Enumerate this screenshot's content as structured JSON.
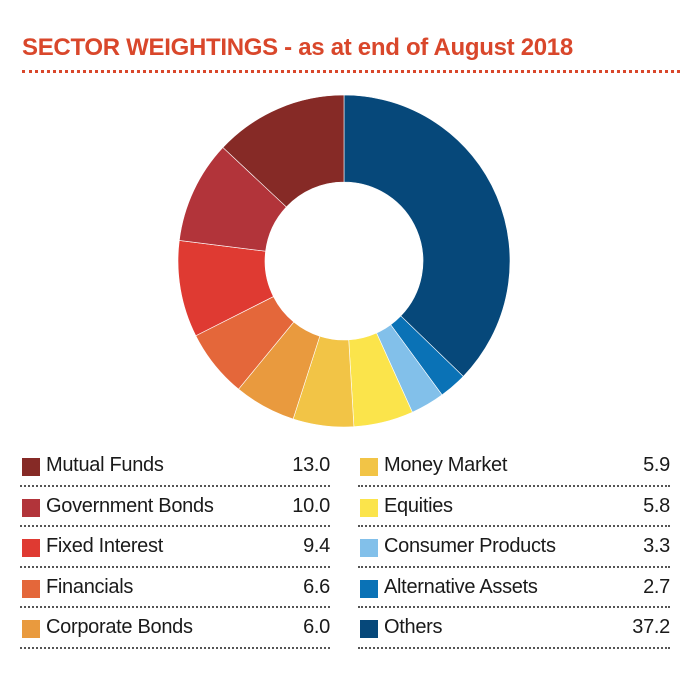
{
  "chart_data": {
    "type": "pie",
    "donut": true,
    "title": "SECTOR WEIGHTINGS - as at end of August 2018",
    "start_category": "Others",
    "slice_order": [
      "Others",
      "Alternative Assets",
      "Consumer Products",
      "Equities",
      "Money Market",
      "Corporate Bonds",
      "Financials",
      "Fixed Interest",
      "Government Bonds",
      "Mutual Funds"
    ],
    "categories": [
      "Mutual Funds",
      "Government Bonds",
      "Fixed Interest",
      "Financials",
      "Corporate Bonds",
      "Money Market",
      "Equities",
      "Consumer Products",
      "Alternative Assets",
      "Others"
    ],
    "values": [
      13.0,
      10.0,
      9.4,
      6.6,
      6.0,
      5.9,
      5.8,
      3.3,
      2.7,
      37.2
    ],
    "value_labels": [
      "13.0",
      "10.0",
      "9.4",
      "6.6",
      "6.0",
      "5.9",
      "5.8",
      "3.3",
      "2.7",
      "37.2"
    ],
    "colors": [
      "#862a26",
      "#b2343a",
      "#df3a32",
      "#e4673a",
      "#e99a3e",
      "#f2c446",
      "#fbe44b",
      "#82c0ea",
      "#0a72b6",
      "#06487a"
    ],
    "legend": "bottom"
  }
}
